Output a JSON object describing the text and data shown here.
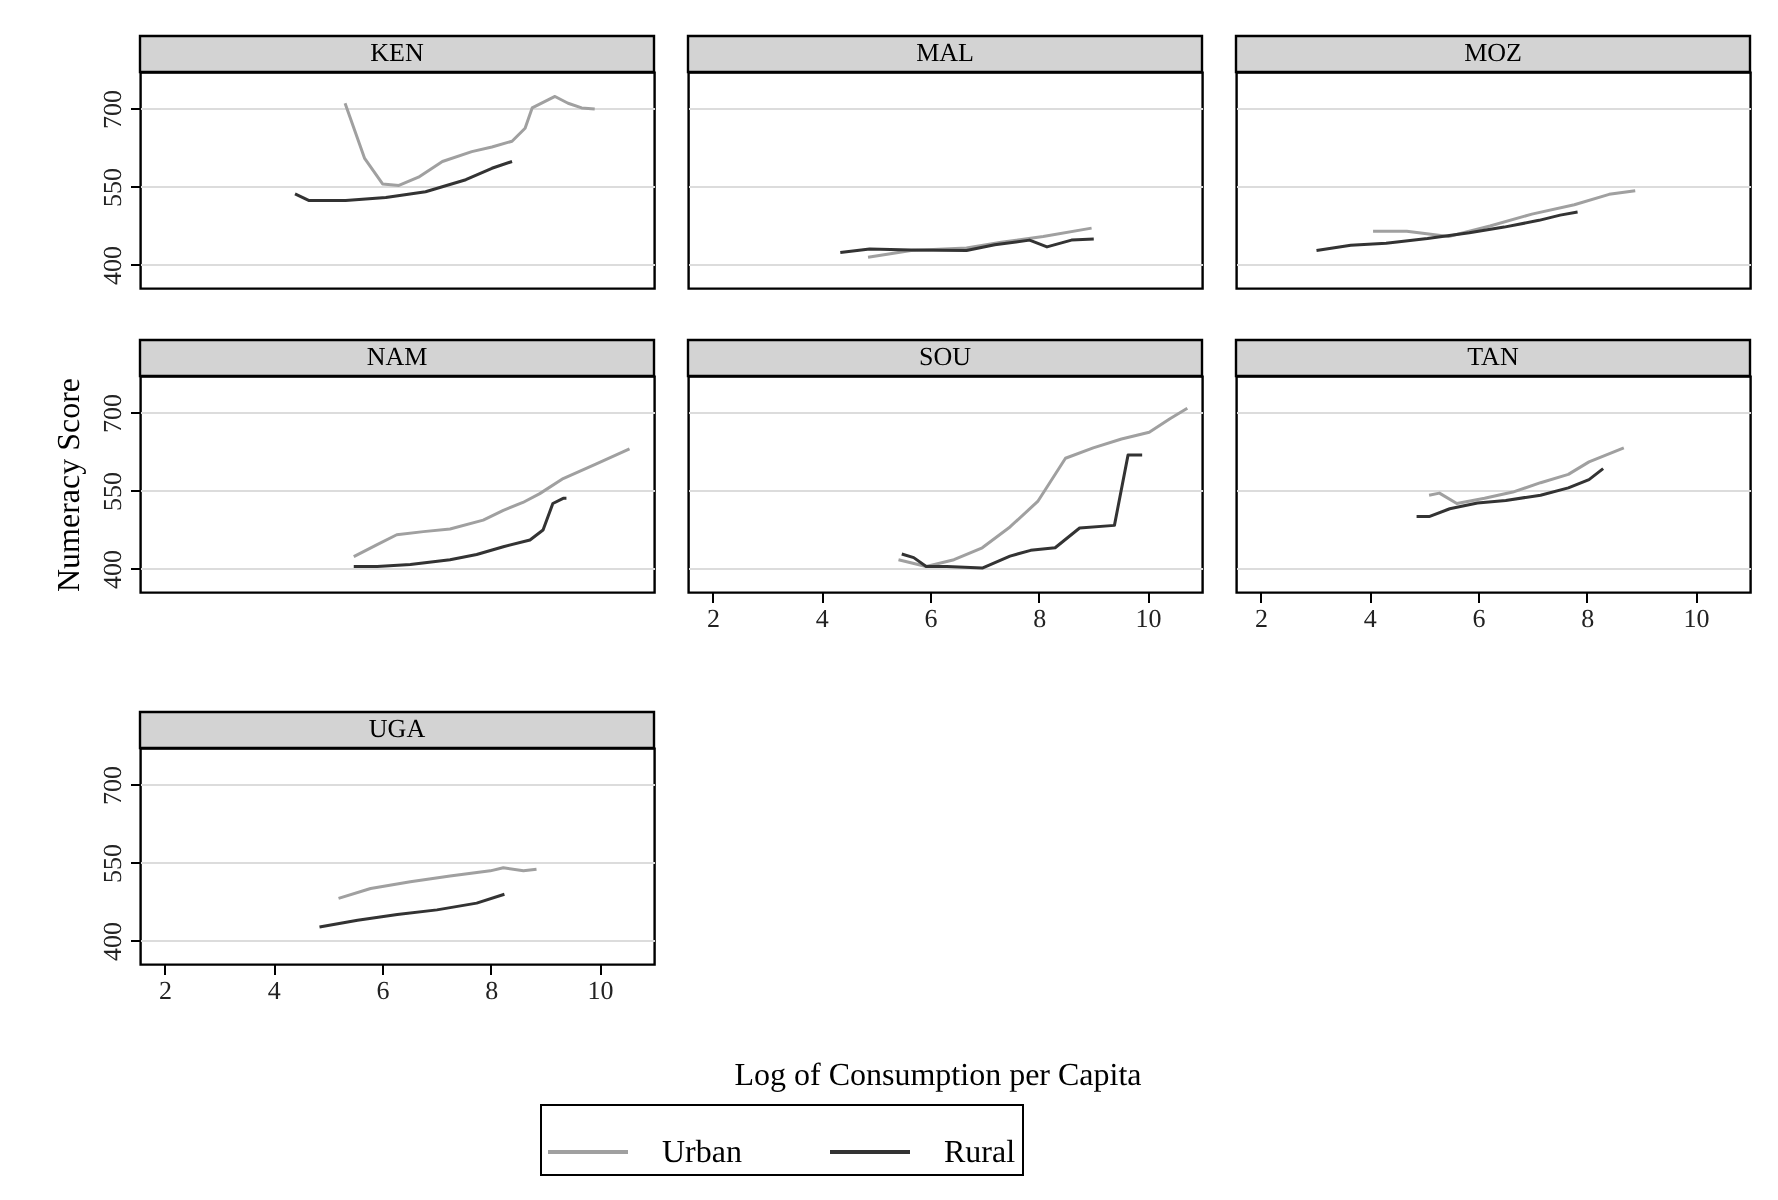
{
  "chart_data": [
    {
      "type": "line",
      "title": "KEN",
      "xlim": [
        1.55,
        11
      ],
      "xticks": [
        2,
        4,
        6,
        8,
        10
      ],
      "ylim": [
        355,
        770
      ],
      "yticks": [
        400,
        550,
        700
      ],
      "grid": "y",
      "tick_labels": "y",
      "series": [
        {
          "color": "#a0a0a0",
          "x": [
            5.32,
            5.68,
            6.01,
            6.31,
            6.67,
            7.11,
            7.65,
            8.02,
            8.39,
            8.63,
            8.76,
            9.18,
            9.42,
            9.67,
            9.91
          ],
          "values": [
            710,
            604,
            555,
            552,
            568,
            598,
            617,
            626,
            637,
            662,
            701,
            723,
            710,
            701,
            699
          ]
        },
        {
          "color": "#333333",
          "x": [
            4.4,
            4.66,
            5.33,
            6.07,
            6.8,
            7.54,
            8.02,
            8.39
          ],
          "values": [
            536,
            523,
            523,
            529,
            540,
            563,
            585,
            598
          ]
        }
      ]
    },
    {
      "type": "line",
      "title": "MAL",
      "xlim": [
        1.55,
        11
      ],
      "xticks": [
        2,
        4,
        6,
        8,
        10
      ],
      "ylim": [
        355,
        770
      ],
      "yticks": [
        400,
        550,
        700
      ],
      "grid": "y",
      "tick_labels": false,
      "series": [
        {
          "color": "#a0a0a0",
          "x": [
            4.86,
            5.65,
            6.67,
            7.31,
            8.08,
            8.97
          ],
          "values": [
            414,
            427,
            432,
            443,
            454,
            470
          ]
        },
        {
          "color": "#333333",
          "x": [
            4.35,
            4.89,
            5.65,
            6.67,
            7.19,
            7.83,
            8.15,
            8.6,
            9.01
          ],
          "values": [
            423,
            430,
            428,
            427,
            438,
            447,
            434,
            447,
            449
          ]
        }
      ]
    },
    {
      "type": "line",
      "title": "MOZ",
      "xlim": [
        1.55,
        11
      ],
      "xticks": [
        2,
        4,
        6,
        8,
        10
      ],
      "ylim": [
        355,
        770
      ],
      "yticks": [
        400,
        550,
        700
      ],
      "grid": "y",
      "tick_labels": false,
      "series": [
        {
          "color": "#a0a0a0",
          "x": [
            4.07,
            4.69,
            5.46,
            6.22,
            6.99,
            7.77,
            8.41,
            8.89
          ],
          "values": [
            464,
            464,
            454,
            474,
            497,
            515,
            535,
            542
          ]
        },
        {
          "color": "#333333",
          "x": [
            3.03,
            3.66,
            4.31,
            5.07,
            5.84,
            6.48,
            7.12,
            7.51,
            7.83
          ],
          "values": [
            427,
            437,
            441,
            450,
            461,
            472,
            485,
            495,
            501
          ]
        }
      ]
    },
    {
      "type": "line",
      "title": "NAM",
      "ylabel": "Numeracy Score",
      "xlim": [
        1.55,
        11
      ],
      "xticks": [
        2,
        4,
        6,
        8,
        10
      ],
      "ylim": [
        355,
        770
      ],
      "yticks": [
        400,
        550,
        700
      ],
      "grid": "y",
      "tick_labels": "y",
      "series": [
        {
          "color": "#a0a0a0",
          "x": [
            5.48,
            5.91,
            6.27,
            6.76,
            7.25,
            7.86,
            8.23,
            8.59,
            8.9,
            9.33,
            9.94,
            10.55
          ],
          "values": [
            423,
            446,
            465,
            471,
            476,
            493,
            512,
            527,
            544,
            573,
            601,
            630
          ]
        },
        {
          "color": "#333333",
          "x": [
            5.48,
            5.91,
            6.52,
            7.25,
            7.74,
            8.23,
            8.72,
            8.96,
            9.14,
            9.33,
            9.39
          ],
          "values": [
            404,
            404,
            408,
            417,
            427,
            442,
            455,
            474,
            525,
            535,
            535
          ]
        }
      ]
    },
    {
      "type": "line",
      "title": "SOU",
      "xlim": [
        1.55,
        11
      ],
      "xticks": [
        2,
        4,
        6,
        8,
        10
      ],
      "ylim": [
        355,
        770
      ],
      "yticks": [
        400,
        550,
        700
      ],
      "grid": "y",
      "tick_labels": "x",
      "series": [
        {
          "color": "#a0a0a0",
          "x": [
            5.42,
            5.93,
            6.44,
            6.96,
            7.47,
            7.98,
            8.49,
            9.0,
            9.52,
            10.03,
            10.41,
            10.73
          ],
          "values": [
            417,
            404,
            417,
            440,
            480,
            529,
            612,
            632,
            649,
            662,
            688,
            708
          ]
        },
        {
          "color": "#333333",
          "x": [
            5.48,
            5.7,
            5.93,
            6.31,
            6.96,
            7.47,
            7.85,
            8.3,
            8.75,
            9.39,
            9.64,
            9.9
          ],
          "values": [
            428,
            421,
            404,
            404,
            401,
            424,
            435,
            440,
            478,
            483,
            618,
            618
          ]
        }
      ]
    },
    {
      "type": "line",
      "title": "TAN",
      "xlim": [
        1.55,
        11
      ],
      "xticks": [
        2,
        4,
        6,
        8,
        10
      ],
      "ylim": [
        355,
        770
      ],
      "yticks": [
        400,
        550,
        700
      ],
      "grid": "y",
      "tick_labels": "x",
      "series": [
        {
          "color": "#a0a0a0",
          "x": [
            5.1,
            5.29,
            5.61,
            6.12,
            6.64,
            7.15,
            7.66,
            8.04,
            8.68
          ],
          "values": [
            541,
            545,
            525,
            535,
            547,
            565,
            581,
            605,
            632
          ]
        },
        {
          "color": "#333333",
          "x": [
            4.87,
            5.1,
            5.48,
            5.99,
            6.51,
            7.15,
            7.66,
            8.04,
            8.3
          ],
          "values": [
            500,
            500,
            515,
            526,
            531,
            541,
            555,
            571,
            592
          ]
        }
      ]
    },
    {
      "type": "line",
      "title": "UGA",
      "xlabel": "Log of Consumption per Capita",
      "xlim": [
        1.55,
        11
      ],
      "xticks": [
        2,
        4,
        6,
        8,
        10
      ],
      "ylim": [
        355,
        770
      ],
      "yticks": [
        400,
        550,
        700
      ],
      "grid": "y",
      "legend": "bottom",
      "series": [
        {
          "name": "Urban",
          "color": "#a0a0a0",
          "x": [
            5.2,
            5.79,
            6.52,
            7.25,
            7.99,
            8.23,
            8.6,
            8.84
          ],
          "values": [
            481,
            500,
            513,
            524,
            534,
            540,
            534,
            537
          ]
        },
        {
          "name": "Rural",
          "color": "#333333",
          "x": [
            4.85,
            5.55,
            6.28,
            7.01,
            7.74,
            8.25
          ],
          "values": [
            426,
            439,
            450,
            459,
            472,
            489
          ]
        }
      ]
    }
  ]
}
